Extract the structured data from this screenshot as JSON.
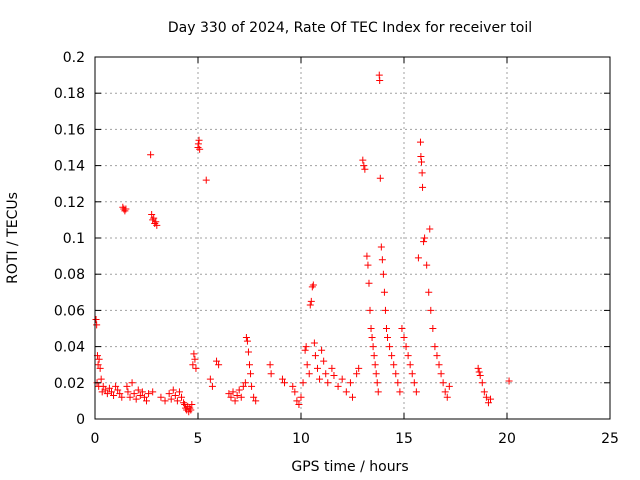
{
  "chart_data": {
    "type": "scatter",
    "title": "Day 330 of 2024, Rate Of TEC Index for receiver toil",
    "xlabel": "GPS time / hours",
    "ylabel": "ROTI / TECUs",
    "xlim": [
      0,
      25
    ],
    "ylim": [
      0,
      0.2
    ],
    "xticks": [
      0,
      5,
      10,
      15,
      20,
      25
    ],
    "xtick_labels": [
      "0",
      "5",
      "10",
      "15",
      "20",
      "25"
    ],
    "yticks": [
      0,
      0.02,
      0.04,
      0.06,
      0.08,
      0.1,
      0.12,
      0.14,
      0.16,
      0.18,
      0.2
    ],
    "ytick_labels": [
      "0",
      "0.02",
      "0.04",
      "0.06",
      "0.08",
      "0.1",
      "0.12",
      "0.14",
      "0.16",
      "0.18",
      "0.2"
    ],
    "grid": true,
    "marker": "+",
    "color": "#ff0000",
    "series": [
      {
        "name": "ROTI",
        "points": [
          [
            0.05,
            0.055
          ],
          [
            0.08,
            0.052
          ],
          [
            0.12,
            0.035
          ],
          [
            0.15,
            0.03
          ],
          [
            0.2,
            0.033
          ],
          [
            0.25,
            0.028
          ],
          [
            0.1,
            0.02
          ],
          [
            0.18,
            0.018
          ],
          [
            0.3,
            0.022
          ],
          [
            0.35,
            0.015
          ],
          [
            0.4,
            0.018
          ],
          [
            0.5,
            0.016
          ],
          [
            0.6,
            0.014
          ],
          [
            0.7,
            0.017
          ],
          [
            0.8,
            0.015
          ],
          [
            0.9,
            0.013
          ],
          [
            1.0,
            0.018
          ],
          [
            1.1,
            0.016
          ],
          [
            1.2,
            0.014
          ],
          [
            1.3,
            0.012
          ],
          [
            1.35,
            0.117
          ],
          [
            1.4,
            0.116
          ],
          [
            1.45,
            0.115
          ],
          [
            1.5,
            0.116
          ],
          [
            1.55,
            0.018
          ],
          [
            1.6,
            0.015
          ],
          [
            1.7,
            0.012
          ],
          [
            1.8,
            0.02
          ],
          [
            1.9,
            0.014
          ],
          [
            2.0,
            0.011
          ],
          [
            2.1,
            0.016
          ],
          [
            2.2,
            0.013
          ],
          [
            2.3,
            0.015
          ],
          [
            2.4,
            0.012
          ],
          [
            2.5,
            0.01
          ],
          [
            2.6,
            0.014
          ],
          [
            2.7,
            0.146
          ],
          [
            2.75,
            0.113
          ],
          [
            2.8,
            0.11
          ],
          [
            2.85,
            0.111
          ],
          [
            2.9,
            0.108
          ],
          [
            2.95,
            0.109
          ],
          [
            3.0,
            0.107
          ],
          [
            2.8,
            0.015
          ],
          [
            3.2,
            0.012
          ],
          [
            3.4,
            0.01
          ],
          [
            3.6,
            0.014
          ],
          [
            3.7,
            0.011
          ],
          [
            3.8,
            0.016
          ],
          [
            3.9,
            0.013
          ],
          [
            4.0,
            0.01
          ],
          [
            4.1,
            0.015
          ],
          [
            4.2,
            0.012
          ],
          [
            4.3,
            0.009
          ],
          [
            4.35,
            0.008
          ],
          [
            4.4,
            0.006
          ],
          [
            4.45,
            0.005
          ],
          [
            4.5,
            0.007
          ],
          [
            4.55,
            0.004
          ],
          [
            4.6,
            0.006
          ],
          [
            4.65,
            0.005
          ],
          [
            4.7,
            0.008
          ],
          [
            4.75,
            0.03
          ],
          [
            4.8,
            0.036
          ],
          [
            4.85,
            0.033
          ],
          [
            4.9,
            0.028
          ],
          [
            5.0,
            0.15
          ],
          [
            5.02,
            0.152
          ],
          [
            5.05,
            0.154
          ],
          [
            5.08,
            0.149
          ],
          [
            5.4,
            0.132
          ],
          [
            5.6,
            0.022
          ],
          [
            5.7,
            0.018
          ],
          [
            5.9,
            0.032
          ],
          [
            6.0,
            0.03
          ],
          [
            6.5,
            0.014
          ],
          [
            6.6,
            0.012
          ],
          [
            6.7,
            0.015
          ],
          [
            6.8,
            0.01
          ],
          [
            6.9,
            0.013
          ],
          [
            7.0,
            0.016
          ],
          [
            7.1,
            0.012
          ],
          [
            7.2,
            0.018
          ],
          [
            7.3,
            0.02
          ],
          [
            7.35,
            0.045
          ],
          [
            7.4,
            0.043
          ],
          [
            7.45,
            0.037
          ],
          [
            7.5,
            0.03
          ],
          [
            7.55,
            0.025
          ],
          [
            7.6,
            0.018
          ],
          [
            7.7,
            0.012
          ],
          [
            7.8,
            0.01
          ],
          [
            8.5,
            0.03
          ],
          [
            8.55,
            0.025
          ],
          [
            9.1,
            0.022
          ],
          [
            9.2,
            0.02
          ],
          [
            9.6,
            0.018
          ],
          [
            9.7,
            0.015
          ],
          [
            9.8,
            0.01
          ],
          [
            9.9,
            0.008
          ],
          [
            10.0,
            0.012
          ],
          [
            10.1,
            0.02
          ],
          [
            10.2,
            0.038
          ],
          [
            10.25,
            0.04
          ],
          [
            10.3,
            0.03
          ],
          [
            10.4,
            0.025
          ],
          [
            10.45,
            0.063
          ],
          [
            10.5,
            0.065
          ],
          [
            10.55,
            0.073
          ],
          [
            10.6,
            0.074
          ],
          [
            10.65,
            0.042
          ],
          [
            10.7,
            0.035
          ],
          [
            10.8,
            0.028
          ],
          [
            10.9,
            0.022
          ],
          [
            11.0,
            0.038
          ],
          [
            11.1,
            0.032
          ],
          [
            11.2,
            0.025
          ],
          [
            11.3,
            0.02
          ],
          [
            11.5,
            0.028
          ],
          [
            11.6,
            0.024
          ],
          [
            11.8,
            0.018
          ],
          [
            12.0,
            0.022
          ],
          [
            12.2,
            0.015
          ],
          [
            12.4,
            0.02
          ],
          [
            12.5,
            0.012
          ],
          [
            12.7,
            0.025
          ],
          [
            12.8,
            0.028
          ],
          [
            13.0,
            0.143
          ],
          [
            13.05,
            0.14
          ],
          [
            13.1,
            0.138
          ],
          [
            13.2,
            0.09
          ],
          [
            13.25,
            0.085
          ],
          [
            13.3,
            0.075
          ],
          [
            13.35,
            0.06
          ],
          [
            13.4,
            0.05
          ],
          [
            13.45,
            0.045
          ],
          [
            13.5,
            0.04
          ],
          [
            13.55,
            0.035
          ],
          [
            13.6,
            0.03
          ],
          [
            13.65,
            0.025
          ],
          [
            13.7,
            0.02
          ],
          [
            13.75,
            0.015
          ],
          [
            13.8,
            0.19
          ],
          [
            13.82,
            0.187
          ],
          [
            13.85,
            0.133
          ],
          [
            13.9,
            0.095
          ],
          [
            13.95,
            0.088
          ],
          [
            14.0,
            0.08
          ],
          [
            14.05,
            0.07
          ],
          [
            14.1,
            0.06
          ],
          [
            14.15,
            0.05
          ],
          [
            14.2,
            0.045
          ],
          [
            14.3,
            0.04
          ],
          [
            14.4,
            0.035
          ],
          [
            14.5,
            0.03
          ],
          [
            14.6,
            0.025
          ],
          [
            14.7,
            0.02
          ],
          [
            14.8,
            0.015
          ],
          [
            14.9,
            0.05
          ],
          [
            15.0,
            0.045
          ],
          [
            15.1,
            0.04
          ],
          [
            15.2,
            0.035
          ],
          [
            15.3,
            0.03
          ],
          [
            15.4,
            0.025
          ],
          [
            15.5,
            0.02
          ],
          [
            15.6,
            0.015
          ],
          [
            15.7,
            0.089
          ],
          [
            15.8,
            0.153
          ],
          [
            15.82,
            0.145
          ],
          [
            15.85,
            0.142
          ],
          [
            15.88,
            0.136
          ],
          [
            15.9,
            0.128
          ],
          [
            15.95,
            0.098
          ],
          [
            16.0,
            0.1
          ],
          [
            16.1,
            0.085
          ],
          [
            16.2,
            0.07
          ],
          [
            16.25,
            0.105
          ],
          [
            16.3,
            0.06
          ],
          [
            16.4,
            0.05
          ],
          [
            16.5,
            0.04
          ],
          [
            16.6,
            0.035
          ],
          [
            16.7,
            0.03
          ],
          [
            16.8,
            0.025
          ],
          [
            16.9,
            0.02
          ],
          [
            17.0,
            0.015
          ],
          [
            17.1,
            0.012
          ],
          [
            17.2,
            0.018
          ],
          [
            18.6,
            0.028
          ],
          [
            18.65,
            0.026
          ],
          [
            18.7,
            0.024
          ],
          [
            18.8,
            0.02
          ],
          [
            18.9,
            0.015
          ],
          [
            19.0,
            0.012
          ],
          [
            19.1,
            0.009
          ],
          [
            19.2,
            0.011
          ],
          [
            20.1,
            0.021
          ]
        ]
      }
    ]
  }
}
